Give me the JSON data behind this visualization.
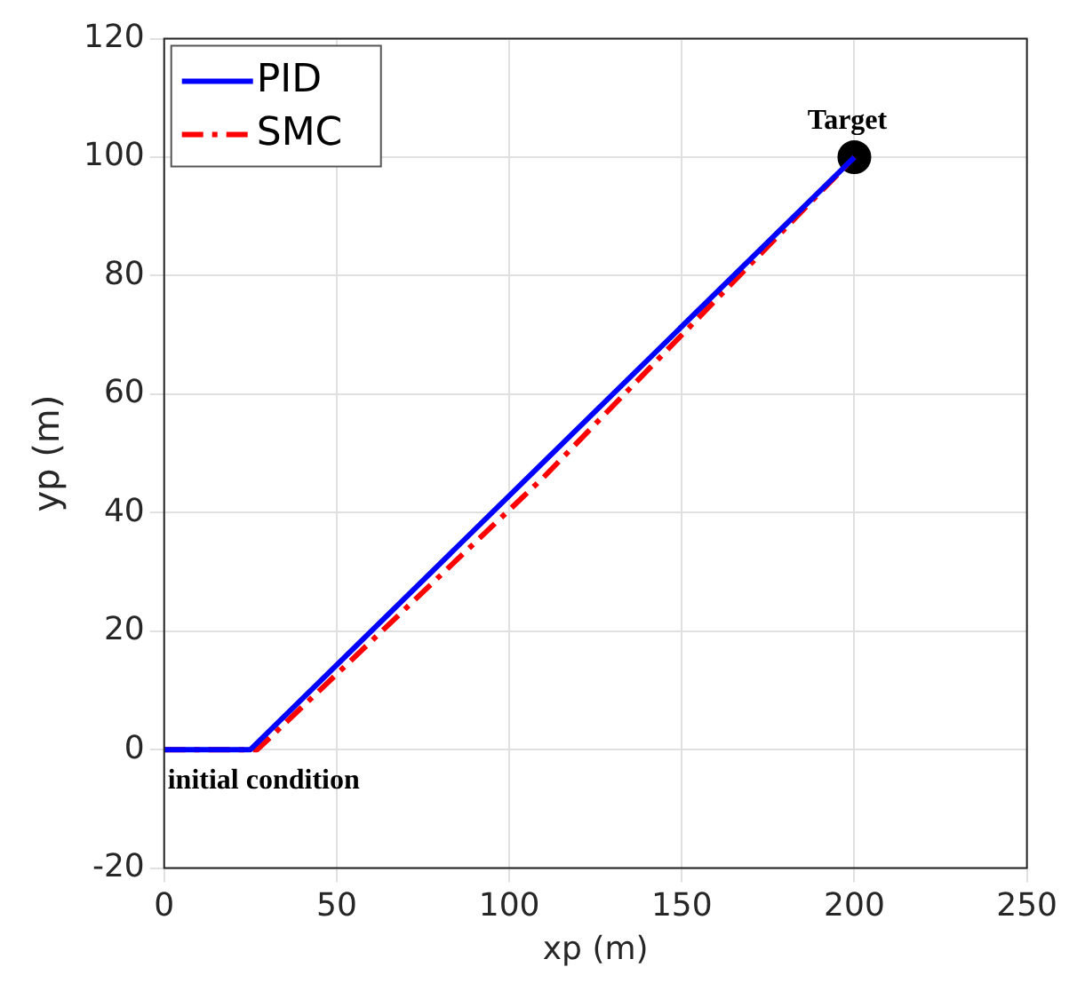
{
  "chart_data": {
    "type": "line",
    "xlabel": "xp (m)",
    "ylabel": "yp (m)",
    "xlim": [
      0,
      250
    ],
    "xticks": [
      0,
      50,
      100,
      150,
      200,
      250
    ],
    "ylim": [
      -20,
      120
    ],
    "yticks": [
      -20,
      0,
      20,
      40,
      60,
      80,
      100,
      120
    ],
    "grid": true,
    "legend": "top left",
    "marker": "none",
    "series": [
      {
        "name": "PID",
        "color": "#0000ff",
        "line_style": "solid",
        "x": [
          0,
          25,
          200
        ],
        "values": [
          0,
          0,
          100
        ]
      },
      {
        "name": "SMC",
        "color": "#ff0000",
        "line_style": "dashed",
        "x": [
          0,
          27,
          110,
          200
        ],
        "values": [
          0,
          0,
          46,
          100
        ]
      },
      {
        "type": "scatter",
        "marker": "circle",
        "color": "#000000",
        "x": [
          200
        ],
        "values": [
          100
        ]
      }
    ],
    "annotations": [
      {
        "text": "Target",
        "x": 200,
        "y": 100
      },
      {
        "text": "initial condition",
        "x": 0,
        "y": 0
      }
    ]
  }
}
